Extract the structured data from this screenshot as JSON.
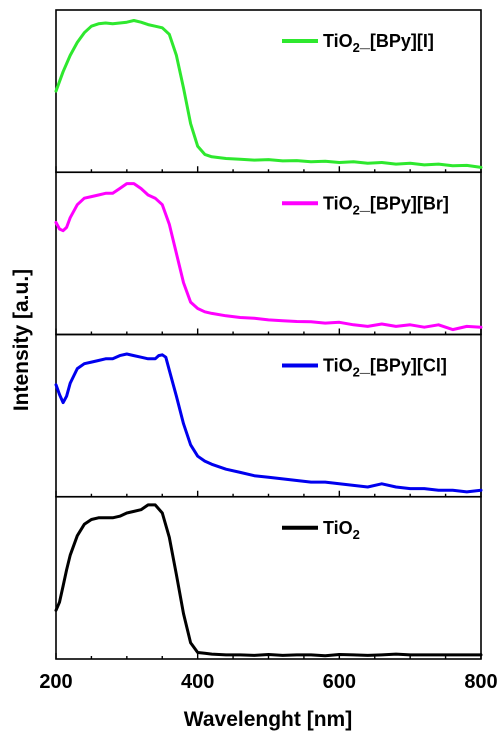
{
  "chart_data": {
    "type": "line",
    "xlabel": "Wavelenght [nm]",
    "ylabel": "Intensity [a.u.]",
    "xlim": [
      200,
      800
    ],
    "x_ticks": [
      "200",
      "400",
      "600",
      "800"
    ],
    "ylim": [
      0,
      1
    ],
    "grid": false,
    "layout": "stacked panels, top to bottom",
    "panels": [
      {
        "legend_label": "TiO2_[BPy][I]",
        "legend_position": "top-right",
        "color": "#2ee82e",
        "x": [
          200,
          210,
          220,
          230,
          240,
          250,
          260,
          270,
          280,
          290,
          300,
          310,
          320,
          330,
          340,
          350,
          360,
          370,
          380,
          390,
          400,
          410,
          420,
          440,
          460,
          480,
          500,
          520,
          540,
          560,
          580,
          600,
          620,
          640,
          660,
          680,
          700,
          720,
          740,
          760,
          780,
          800
        ],
        "y": [
          0.5,
          0.62,
          0.72,
          0.8,
          0.86,
          0.9,
          0.915,
          0.92,
          0.915,
          0.92,
          0.925,
          0.935,
          0.925,
          0.91,
          0.9,
          0.89,
          0.85,
          0.72,
          0.52,
          0.3,
          0.16,
          0.11,
          0.095,
          0.085,
          0.08,
          0.075,
          0.078,
          0.07,
          0.072,
          0.065,
          0.068,
          0.06,
          0.065,
          0.055,
          0.06,
          0.05,
          0.055,
          0.045,
          0.05,
          0.04,
          0.042,
          0.03
        ]
      },
      {
        "legend_label": "TiO2_[BPy][Br]",
        "legend_position": "top-right",
        "color": "#ff00ff",
        "x": [
          200,
          205,
          210,
          215,
          220,
          230,
          240,
          250,
          260,
          270,
          280,
          290,
          300,
          310,
          320,
          330,
          340,
          350,
          360,
          370,
          380,
          390,
          400,
          410,
          420,
          440,
          460,
          480,
          500,
          520,
          540,
          560,
          580,
          600,
          620,
          640,
          660,
          680,
          700,
          720,
          740,
          760,
          780,
          800
        ],
        "y": [
          0.69,
          0.65,
          0.64,
          0.66,
          0.72,
          0.8,
          0.84,
          0.85,
          0.86,
          0.87,
          0.87,
          0.9,
          0.93,
          0.93,
          0.9,
          0.86,
          0.84,
          0.8,
          0.68,
          0.5,
          0.32,
          0.2,
          0.16,
          0.14,
          0.13,
          0.115,
          0.105,
          0.1,
          0.09,
          0.085,
          0.08,
          0.078,
          0.07,
          0.075,
          0.06,
          0.05,
          0.065,
          0.05,
          0.06,
          0.045,
          0.06,
          0.03,
          0.05,
          0.045
        ]
      },
      {
        "legend_label": "TiO2_[BPy][Cl]",
        "legend_position": "top-right",
        "color": "#0000ee",
        "x": [
          200,
          205,
          210,
          215,
          220,
          230,
          240,
          250,
          260,
          270,
          280,
          290,
          300,
          310,
          320,
          330,
          340,
          345,
          350,
          355,
          360,
          370,
          380,
          390,
          400,
          410,
          420,
          440,
          460,
          480,
          500,
          520,
          540,
          560,
          580,
          600,
          620,
          640,
          660,
          680,
          700,
          720,
          740,
          760,
          780,
          800
        ],
        "y": [
          0.69,
          0.63,
          0.58,
          0.62,
          0.7,
          0.79,
          0.82,
          0.83,
          0.84,
          0.85,
          0.85,
          0.87,
          0.88,
          0.87,
          0.86,
          0.85,
          0.85,
          0.87,
          0.875,
          0.86,
          0.78,
          0.62,
          0.45,
          0.32,
          0.25,
          0.22,
          0.2,
          0.17,
          0.15,
          0.13,
          0.12,
          0.11,
          0.1,
          0.09,
          0.09,
          0.08,
          0.07,
          0.06,
          0.08,
          0.06,
          0.05,
          0.05,
          0.04,
          0.04,
          0.03,
          0.04
        ]
      },
      {
        "legend_label": "TiO2",
        "legend_position": "top-right",
        "color": "#000000",
        "x": [
          200,
          205,
          210,
          215,
          220,
          230,
          240,
          250,
          260,
          270,
          280,
          290,
          300,
          310,
          320,
          330,
          340,
          350,
          360,
          370,
          380,
          390,
          400,
          410,
          420,
          440,
          460,
          480,
          500,
          520,
          540,
          560,
          580,
          600,
          620,
          640,
          660,
          680,
          700,
          720,
          740,
          760,
          780,
          800
        ],
        "y": [
          0.3,
          0.35,
          0.45,
          0.55,
          0.64,
          0.76,
          0.83,
          0.86,
          0.87,
          0.87,
          0.87,
          0.88,
          0.9,
          0.91,
          0.92,
          0.95,
          0.95,
          0.9,
          0.75,
          0.52,
          0.28,
          0.1,
          0.04,
          0.035,
          0.03,
          0.025,
          0.025,
          0.022,
          0.028,
          0.022,
          0.025,
          0.025,
          0.02,
          0.028,
          0.025,
          0.022,
          0.025,
          0.03,
          0.025,
          0.025,
          0.025,
          0.025,
          0.025,
          0.025
        ]
      }
    ]
  }
}
